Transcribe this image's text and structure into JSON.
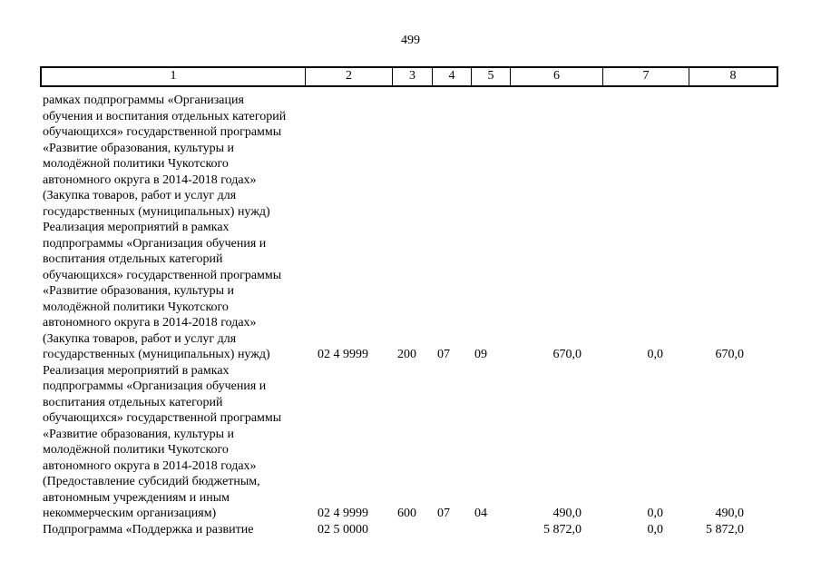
{
  "page": {
    "number": "499"
  },
  "table": {
    "header": [
      "1",
      "2",
      "3",
      "4",
      "5",
      "6",
      "7",
      "8"
    ],
    "rows": [
      {
        "name": "рамках подпрограммы «Организация\nобучения и воспитания отдельных категорий\nобучающихся» государственной программы\n«Развитие образования, культуры и\nмолодёжной политики Чукотского\nавтономного округа в 2014-2018 годах»\n(Закупка товаров, работ и услуг для\nгосударственных (муниципальных) нужд)",
        "col2": "",
        "col3": "",
        "col4": "",
        "col5": "",
        "col6": "",
        "col7": "",
        "col8": ""
      },
      {
        "name": "Реализация мероприятий в рамках\nподпрограммы «Организация обучения и\nвоспитания отдельных категорий\nобучающихся» государственной программы\n«Развитие образования, культуры и\nмолодёжной политики Чукотского\nавтономного округа в 2014-2018 годах»\n(Закупка товаров, работ и услуг для\nгосударственных (муниципальных) нужд)",
        "col2": "02 4 9999",
        "col3": "200",
        "col4": "07",
        "col5": "09",
        "col6": "670,0",
        "col7": "0,0",
        "col8": "670,0"
      },
      {
        "name": "Реализация мероприятий в рамках\nподпрограммы «Организация обучения и\nвоспитания отдельных категорий\nобучающихся» государственной программы\n«Развитие образования, культуры и\nмолодёжной политики Чукотского\nавтономного округа в 2014-2018 годах»\n(Предоставление субсидий бюджетным,\nавтономным учреждениям и иным\nнекоммерческим организациям)",
        "col2": "02 4 9999",
        "col3": "600",
        "col4": "07",
        "col5": "04",
        "col6": "490,0",
        "col7": "0,0",
        "col8": "490,0"
      },
      {
        "name": "Подпрограмма «Поддержка и развитие",
        "col2": "02 5 0000",
        "col3": "",
        "col4": "",
        "col5": "",
        "col6": "5 872,0",
        "col7": "0,0",
        "col8": "5 872,0"
      }
    ]
  }
}
